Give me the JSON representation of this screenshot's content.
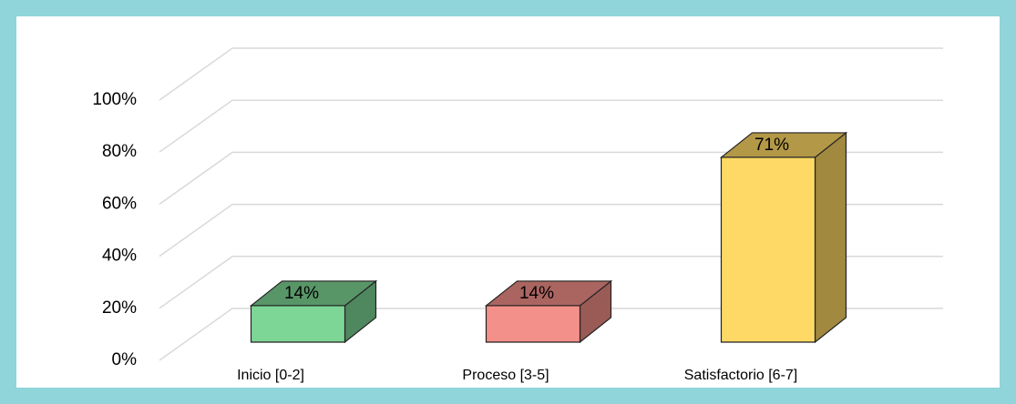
{
  "chart_data": {
    "type": "bar3d",
    "categories": [
      "Inicio  [0-2]",
      "Proceso  [3-5]",
      "Satisfactorio  [6-7]"
    ],
    "values": [
      14,
      14,
      71
    ],
    "value_labels": [
      "14%",
      "14%",
      "71%"
    ],
    "colors": [
      "#7dd695",
      "#f4908a",
      "#ffd966"
    ],
    "ylim": [
      0,
      100
    ],
    "yticks": [
      {
        "value": 0,
        "label": "0%"
      },
      {
        "value": 20,
        "label": "20%"
      },
      {
        "value": 40,
        "label": "40%"
      },
      {
        "value": 60,
        "label": "60%"
      },
      {
        "value": 80,
        "label": "80%"
      },
      {
        "value": 100,
        "label": "100%"
      }
    ],
    "grid": true
  }
}
